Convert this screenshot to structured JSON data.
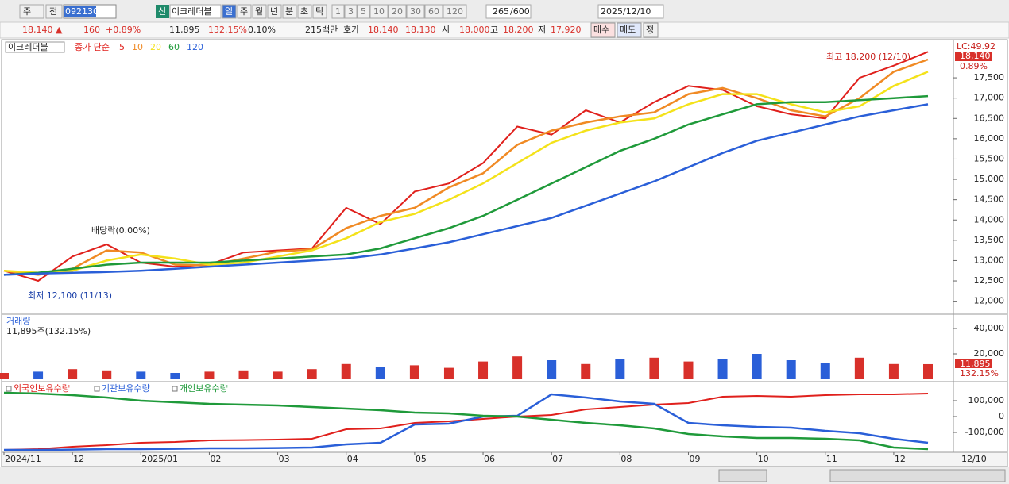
{
  "toolbar": {
    "period_unit": "주",
    "prev": "전",
    "code": "092130",
    "new": "신",
    "name": "이크레더블",
    "periods": [
      "일",
      "주",
      "월",
      "년",
      "분",
      "초",
      "틱"
    ],
    "intervals": [
      "1",
      "3",
      "5",
      "10",
      "20",
      "30",
      "60",
      "120"
    ],
    "count": "265",
    "count_max": "/600",
    "date": "2025/12/10"
  },
  "info_bar": {
    "price": "18,140 ▲",
    "change": "160",
    "change_pct": "+0.89%",
    "volume": "11,895",
    "volume_pct": "132.15%",
    "turnover": "0.10%",
    "amount": "215백만",
    "quote_label": "호가",
    "ask": "18,140",
    "bid": "18,130",
    "open_label": "시",
    "open": "18,000",
    "high_label": "고",
    "high": "18,200",
    "low_label": "저",
    "low": "17,920",
    "buttons": [
      "매수",
      "매도",
      "정"
    ]
  },
  "x_cursor_label": "12/10",
  "chart_data": [
    {
      "type": "line",
      "title": "이크레더블",
      "legend_prefix": "종가 단순",
      "categories": [
        "2024/11",
        null,
        "12",
        null,
        "2025/01",
        null,
        "02",
        null,
        "03",
        null,
        "04",
        null,
        "05",
        null,
        "06",
        null,
        "07",
        null,
        "08",
        null,
        "09",
        null,
        "10",
        null,
        "11",
        null,
        "12",
        null
      ],
      "series": [
        {
          "name": "5",
          "color": "#e0201c",
          "values": [
            12750,
            12500,
            13100,
            13400,
            12950,
            12850,
            12900,
            13200,
            13250,
            13300,
            14300,
            13900,
            14700,
            14900,
            15400,
            16300,
            16100,
            16700,
            16400,
            16900,
            17300,
            17200,
            16800,
            16600,
            16500,
            17500,
            17800,
            18140
          ]
        },
        {
          "name": "10",
          "color": "#f08a24",
          "values": [
            12750,
            12650,
            12800,
            13250,
            13200,
            12900,
            12880,
            13050,
            13220,
            13280,
            13800,
            14100,
            14300,
            14800,
            15150,
            15850,
            16200,
            16400,
            16550,
            16650,
            17100,
            17250,
            17000,
            16700,
            16550,
            17000,
            17650,
            17950
          ]
        },
        {
          "name": "20",
          "color": "#f4e21a",
          "values": [
            12750,
            12700,
            12750,
            13000,
            13150,
            13050,
            12900,
            12950,
            13100,
            13250,
            13550,
            13950,
            14150,
            14500,
            14900,
            15400,
            15900,
            16200,
            16400,
            16500,
            16850,
            17100,
            17100,
            16850,
            16650,
            16800,
            17300,
            17650
          ]
        },
        {
          "name": "60",
          "color": "#1f9a3a",
          "values": [
            12650,
            12700,
            12800,
            12900,
            12950,
            12950,
            12950,
            13000,
            13050,
            13100,
            13150,
            13300,
            13550,
            13800,
            14100,
            14500,
            14900,
            15300,
            15700,
            16000,
            16350,
            16600,
            16850,
            16900,
            16900,
            16950,
            17000,
            17050
          ]
        },
        {
          "name": "120",
          "color": "#2a5fd8",
          "values": [
            12650,
            12680,
            12700,
            12720,
            12750,
            12800,
            12850,
            12900,
            12950,
            13000,
            13050,
            13150,
            13300,
            13450,
            13650,
            13850,
            14050,
            14350,
            14650,
            14950,
            15300,
            15650,
            15950,
            16150,
            16350,
            16550,
            16700,
            16850
          ]
        }
      ],
      "ylim": [
        11700,
        18400
      ],
      "yticks": [
        {
          "value": 12000,
          "label": "12,000"
        },
        {
          "value": 12500,
          "label": "12,500"
        },
        {
          "value": 13000,
          "label": "13,000"
        },
        {
          "value": 13500,
          "label": "13,500"
        },
        {
          "value": 14000,
          "label": "14,000"
        },
        {
          "value": 14500,
          "label": "14,500"
        },
        {
          "value": 15000,
          "label": "15,000"
        },
        {
          "value": 15500,
          "label": "15,500"
        },
        {
          "value": 16000,
          "label": "16,000"
        },
        {
          "value": 16500,
          "label": "16,500"
        },
        {
          "value": 17000,
          "label": "17,000"
        },
        {
          "value": 17500,
          "label": "17,500"
        }
      ],
      "annotations": {
        "dividend": "배당락(0.00%)",
        "high": "최고 18,200 (12/10)",
        "low": "최저 12,100 (11/13)",
        "lc": "LC:49.92",
        "last_price": "18,140",
        "last_change": "0.89%"
      }
    },
    {
      "type": "bar",
      "title": "거래량",
      "subtitle": "11,895주(132.15%)",
      "values": [
        5000,
        6000,
        8000,
        7000,
        6000,
        5000,
        6000,
        7000,
        6000,
        8000,
        12000,
        10000,
        11000,
        9000,
        14000,
        18000,
        15000,
        12000,
        16000,
        17000,
        14000,
        16000,
        20000,
        15000,
        13000,
        17000,
        12000,
        11895
      ],
      "colors": [
        "#d8302a",
        "#2a5fd8"
      ],
      "ylim": [
        0,
        50000
      ],
      "yticks": [
        {
          "value": 20000,
          "label": "20,000"
        },
        {
          "value": 40000,
          "label": "40,000"
        }
      ],
      "last_label": "11,895",
      "last_pct": "132.15%"
    },
    {
      "type": "line",
      "series": [
        {
          "name": "외국인보유수량",
          "color": "#e0201c",
          "values": [
            -210000,
            -205000,
            -190000,
            -180000,
            -165000,
            -160000,
            -150000,
            -148000,
            -145000,
            -140000,
            -80000,
            -75000,
            -40000,
            -30000,
            -15000,
            0,
            10000,
            45000,
            60000,
            75000,
            85000,
            125000,
            130000,
            125000,
            135000,
            140000,
            140000,
            145000
          ]
        },
        {
          "name": "기관보유수량",
          "color": "#2a5fd8",
          "values": [
            -210000,
            -210000,
            -208000,
            -205000,
            -205000,
            -203000,
            -200000,
            -200000,
            -198000,
            -195000,
            -175000,
            -165000,
            -50000,
            -45000,
            0,
            5000,
            140000,
            120000,
            95000,
            80000,
            -40000,
            -55000,
            -65000,
            -70000,
            -90000,
            -105000,
            -140000,
            -165000
          ]
        },
        {
          "name": "개인보유수량",
          "color": "#1f9a3a",
          "values": [
            150000,
            145000,
            135000,
            120000,
            100000,
            90000,
            80000,
            75000,
            70000,
            60000,
            50000,
            40000,
            25000,
            20000,
            5000,
            0,
            -20000,
            -40000,
            -55000,
            -75000,
            -110000,
            -125000,
            -135000,
            -135000,
            -140000,
            -150000,
            -195000,
            -205000
          ]
        }
      ],
      "ylim": [
        -215000,
        215000
      ],
      "yticks": [
        {
          "value": 100000,
          "label": "100,000"
        },
        0,
        {
          "value": -100000,
          "label": "-100,000"
        }
      ]
    }
  ]
}
